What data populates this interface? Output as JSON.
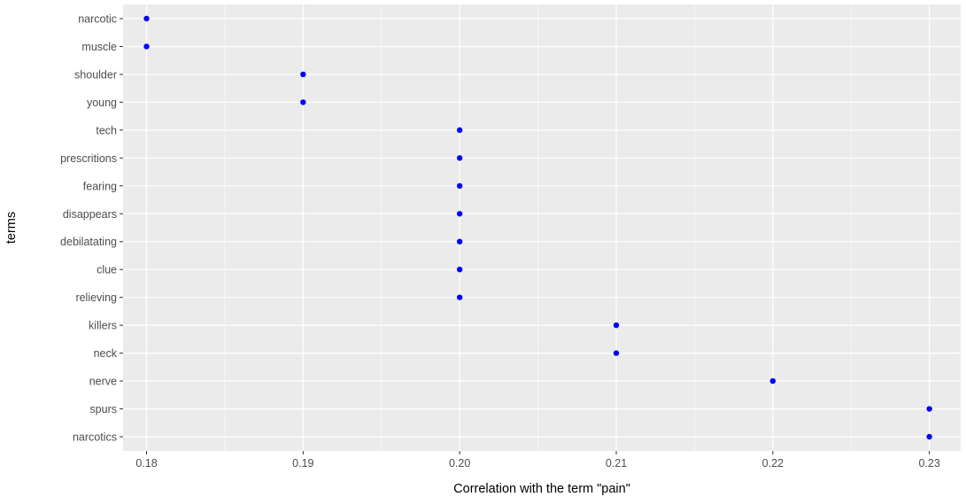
{
  "chart_data": {
    "type": "scatter",
    "title": "",
    "xlabel": "Correlation with the term \"pain\"",
    "ylabel": "terms",
    "xlim": [
      0.1785,
      0.232
    ],
    "xticks": [
      "0.18",
      "0.19",
      "0.20",
      "0.21",
      "0.22",
      "0.23"
    ],
    "x_minor_ticks": [
      0.185,
      0.195,
      0.205,
      0.215,
      0.225
    ],
    "grid": true,
    "point_color": "#0000ff",
    "panel_color": "#ebebeb",
    "grid_color": "#ffffff",
    "points": [
      {
        "term": "narcotic",
        "value": 0.18
      },
      {
        "term": "muscle",
        "value": 0.18
      },
      {
        "term": "shoulder",
        "value": 0.19
      },
      {
        "term": "young",
        "value": 0.19
      },
      {
        "term": "tech",
        "value": 0.2
      },
      {
        "term": "prescritions",
        "value": 0.2
      },
      {
        "term": "fearing",
        "value": 0.2
      },
      {
        "term": "disappears",
        "value": 0.2
      },
      {
        "term": "debilatating",
        "value": 0.2
      },
      {
        "term": "clue",
        "value": 0.2
      },
      {
        "term": "relieving",
        "value": 0.2
      },
      {
        "term": "killers",
        "value": 0.21
      },
      {
        "term": "neck",
        "value": 0.21
      },
      {
        "term": "nerve",
        "value": 0.22
      },
      {
        "term": "spurs",
        "value": 0.23
      },
      {
        "term": "narcotics",
        "value": 0.23
      }
    ]
  }
}
